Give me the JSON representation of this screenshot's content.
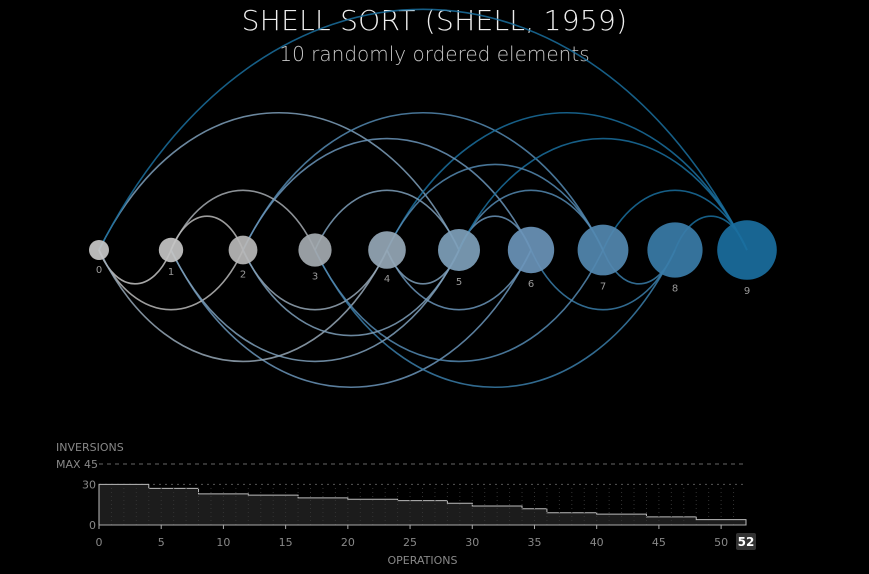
{
  "title": "SHELL SORT (SHELL, 1959)",
  "subtitle": "10 randomly ordered elements",
  "chart_data": [
    {
      "type": "arc-diagram",
      "elements": [
        0,
        1,
        2,
        3,
        4,
        5,
        6,
        7,
        8,
        9
      ],
      "element_colors": [
        "#c8c8c8",
        "#c4c4c4",
        "#b8b8b8",
        "#a4aab0",
        "#95a7b6",
        "#7e9fba",
        "#6a94b8",
        "#5388b0",
        "#3a7ca8",
        "#1a6e9e"
      ],
      "swaps": [
        [
          0,
          5
        ],
        [
          1,
          6
        ],
        [
          2,
          7
        ],
        [
          3,
          8
        ],
        [
          4,
          9
        ],
        [
          0,
          2
        ],
        [
          1,
          3
        ],
        [
          2,
          4
        ],
        [
          3,
          5
        ],
        [
          4,
          6
        ],
        [
          5,
          7
        ],
        [
          6,
          8
        ],
        [
          7,
          9
        ],
        [
          0,
          1
        ],
        [
          1,
          2
        ],
        [
          4,
          5
        ],
        [
          5,
          6
        ],
        [
          7,
          8
        ],
        [
          8,
          9
        ],
        [
          0,
          4
        ],
        [
          2,
          6
        ],
        [
          3,
          7
        ],
        [
          5,
          9
        ],
        [
          1,
          5
        ],
        [
          0,
          9
        ],
        [
          2,
          5
        ],
        [
          4,
          7
        ]
      ]
    },
    {
      "type": "area",
      "title": "INVERSIONS",
      "xlabel": "OPERATIONS",
      "max_label": "MAX 45",
      "max": 45,
      "y_ticks": [
        0,
        30
      ],
      "x_ticks": [
        0,
        5,
        10,
        15,
        20,
        25,
        30,
        35,
        40,
        45,
        50
      ],
      "x_end_label": "52",
      "xlim": [
        0,
        52
      ],
      "ylim": [
        0,
        45
      ],
      "steps": [
        [
          0,
          30
        ],
        [
          4,
          27
        ],
        [
          8,
          23
        ],
        [
          12,
          22
        ],
        [
          16,
          20
        ],
        [
          20,
          19
        ],
        [
          24,
          18
        ],
        [
          28,
          16
        ],
        [
          30,
          14
        ],
        [
          34,
          12
        ],
        [
          36,
          9
        ],
        [
          40,
          8
        ],
        [
          44,
          6
        ],
        [
          48,
          4
        ],
        [
          52,
          0
        ]
      ]
    }
  ]
}
